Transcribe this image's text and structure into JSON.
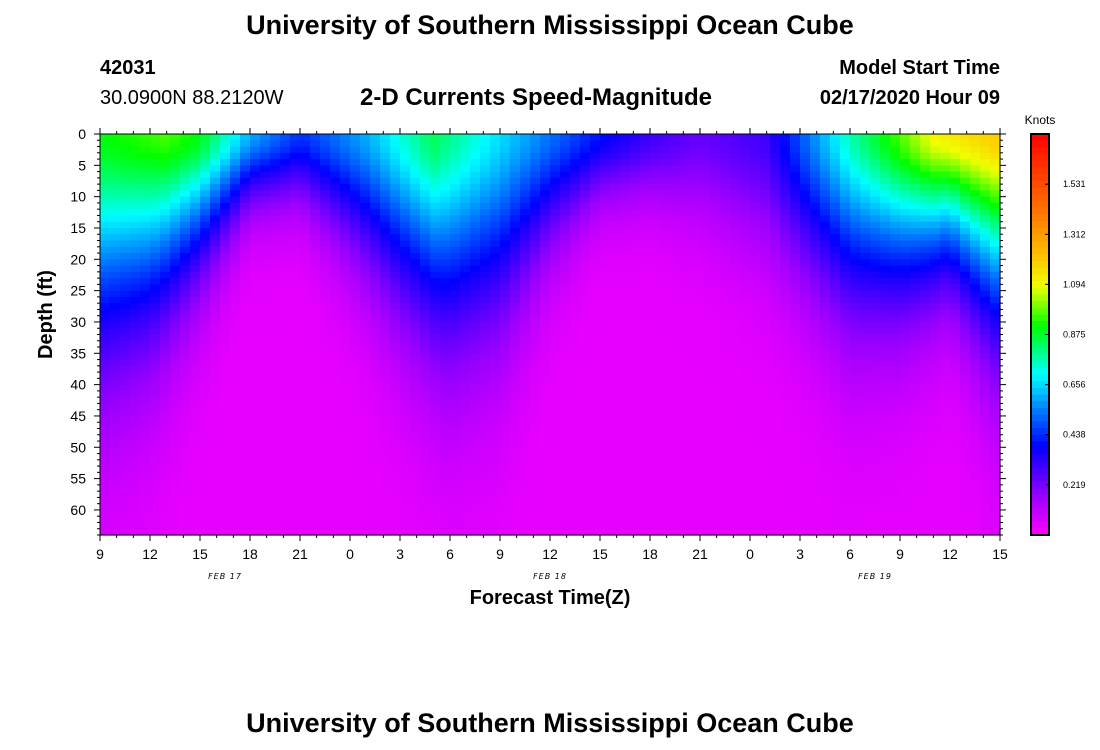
{
  "header": {
    "title_top": "University of Southern Mississippi Ocean Cube",
    "station_id": "42031",
    "coords": "30.0900N 88.2120W",
    "chart_title": "2-D Currents Speed-Magnitude",
    "model_label": "Model Start Time",
    "model_time": "02/17/2020 Hour 09",
    "title_bottom": "University of Southern Mississippi Ocean Cube"
  },
  "chart_data": {
    "type": "heatmap",
    "title": "2-D Currents Speed-Magnitude",
    "xlabel": "Forecast Time(Z)",
    "ylabel": "Depth (ft)",
    "x_hours_range": [
      0,
      54
    ],
    "y_range": [
      0,
      64
    ],
    "x_tick_labels": [
      "9",
      "12",
      "15",
      "18",
      "21",
      "0",
      "3",
      "6",
      "9",
      "12",
      "15",
      "18",
      "21",
      "0",
      "3",
      "6",
      "9",
      "12",
      "15"
    ],
    "y_tick_labels": [
      "0",
      "5",
      "10",
      "15",
      "20",
      "25",
      "30",
      "35",
      "40",
      "45",
      "50",
      "55",
      "60"
    ],
    "day_labels": [
      {
        "label": "FEB 17",
        "hour": 7.5
      },
      {
        "label": "FEB 18",
        "hour": 27
      },
      {
        "label": "FEB 19",
        "hour": 46.5
      }
    ],
    "colorbar": {
      "units": "Knots",
      "min": 0.0,
      "max": 1.75,
      "tick_labels": [
        "1.531",
        "1.312",
        "1.094",
        "0.875",
        "0.656",
        "0.438",
        "0.219"
      ],
      "tick_values": [
        1.531,
        1.312,
        1.094,
        0.875,
        0.656,
        0.438,
        0.219
      ]
    },
    "surface_speed_knots": [
      {
        "hour": 0,
        "speed": 0.9
      },
      {
        "hour": 4,
        "speed": 0.96
      },
      {
        "hour": 6,
        "speed": 0.9
      },
      {
        "hour": 9,
        "speed": 0.6
      },
      {
        "hour": 12,
        "speed": 0.44
      },
      {
        "hour": 16,
        "speed": 0.6
      },
      {
        "hour": 20,
        "speed": 0.84
      },
      {
        "hour": 24,
        "speed": 0.66
      },
      {
        "hour": 30,
        "speed": 0.4
      },
      {
        "hour": 33,
        "speed": 0.3
      },
      {
        "hour": 36,
        "speed": 0.24
      },
      {
        "hour": 40,
        "speed": 0.3
      },
      {
        "hour": 45,
        "speed": 0.76
      },
      {
        "hour": 50,
        "speed": 1.1
      },
      {
        "hour": 54,
        "speed": 1.2
      }
    ],
    "decay_depth_ft": [
      {
        "hour": 0,
        "depth": 30
      },
      {
        "hour": 3,
        "depth": 26
      },
      {
        "hour": 6,
        "depth": 18
      },
      {
        "hour": 9,
        "depth": 10
      },
      {
        "hour": 12,
        "depth": 10
      },
      {
        "hour": 15,
        "depth": 16
      },
      {
        "hour": 18,
        "depth": 23
      },
      {
        "hour": 21,
        "depth": 28
      },
      {
        "hour": 24,
        "depth": 26
      },
      {
        "hour": 27,
        "depth": 16
      },
      {
        "hour": 30,
        "depth": 10
      },
      {
        "hour": 33,
        "depth": 10
      },
      {
        "hour": 36,
        "depth": 13
      },
      {
        "hour": 42,
        "depth": 20
      },
      {
        "hour": 45,
        "depth": 24
      },
      {
        "hour": 48,
        "depth": 22
      },
      {
        "hour": 51,
        "depth": 18
      },
      {
        "hour": 54,
        "depth": 26
      }
    ]
  }
}
